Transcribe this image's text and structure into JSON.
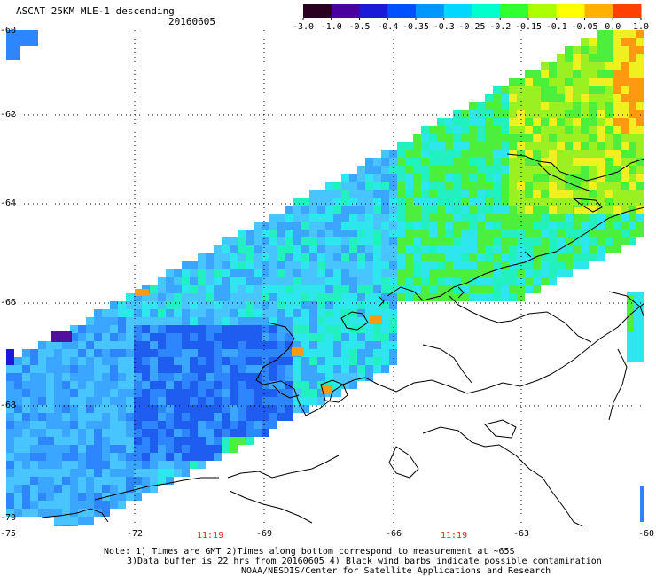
{
  "title": "ASCAT 25KM MLE-1 descending",
  "date": "20160605",
  "colorbar": {
    "tick_labels": [
      "-3.0",
      "-1.0",
      "-0.5",
      "-0.4",
      "-0.35",
      "-0.3",
      "-0.25",
      "-0.2",
      "-0.15",
      "-0.1",
      "-0.05",
      "0.0",
      "1.0"
    ],
    "colors": [
      "#2a0022",
      "#4a00a0",
      "#1a1ad8",
      "#0050ff",
      "#0096ff",
      "#00d8ff",
      "#00ffcc",
      "#30ff30",
      "#aaff00",
      "#ffff00",
      "#ffb000",
      "#ff4000"
    ]
  },
  "lat_labels": [
    "-60",
    "-62",
    "-64",
    "-66",
    "-68",
    "-70"
  ],
  "lon_labels": [
    "-75",
    "-72",
    "-69",
    "-66",
    "-63",
    "-60"
  ],
  "time_labels": [
    "11:19",
    "11:19"
  ],
  "notes": {
    "line1": "Note: 1) Times are GMT 2)Times along bottom correspond to measurement at ~65S",
    "line2": "3)Data buffer is 22 hrs from 20160605 4) Black wind barbs indicate possible contamination",
    "line3": "NOAA/NESDIS/Center for Satellite Applications and Research"
  }
}
